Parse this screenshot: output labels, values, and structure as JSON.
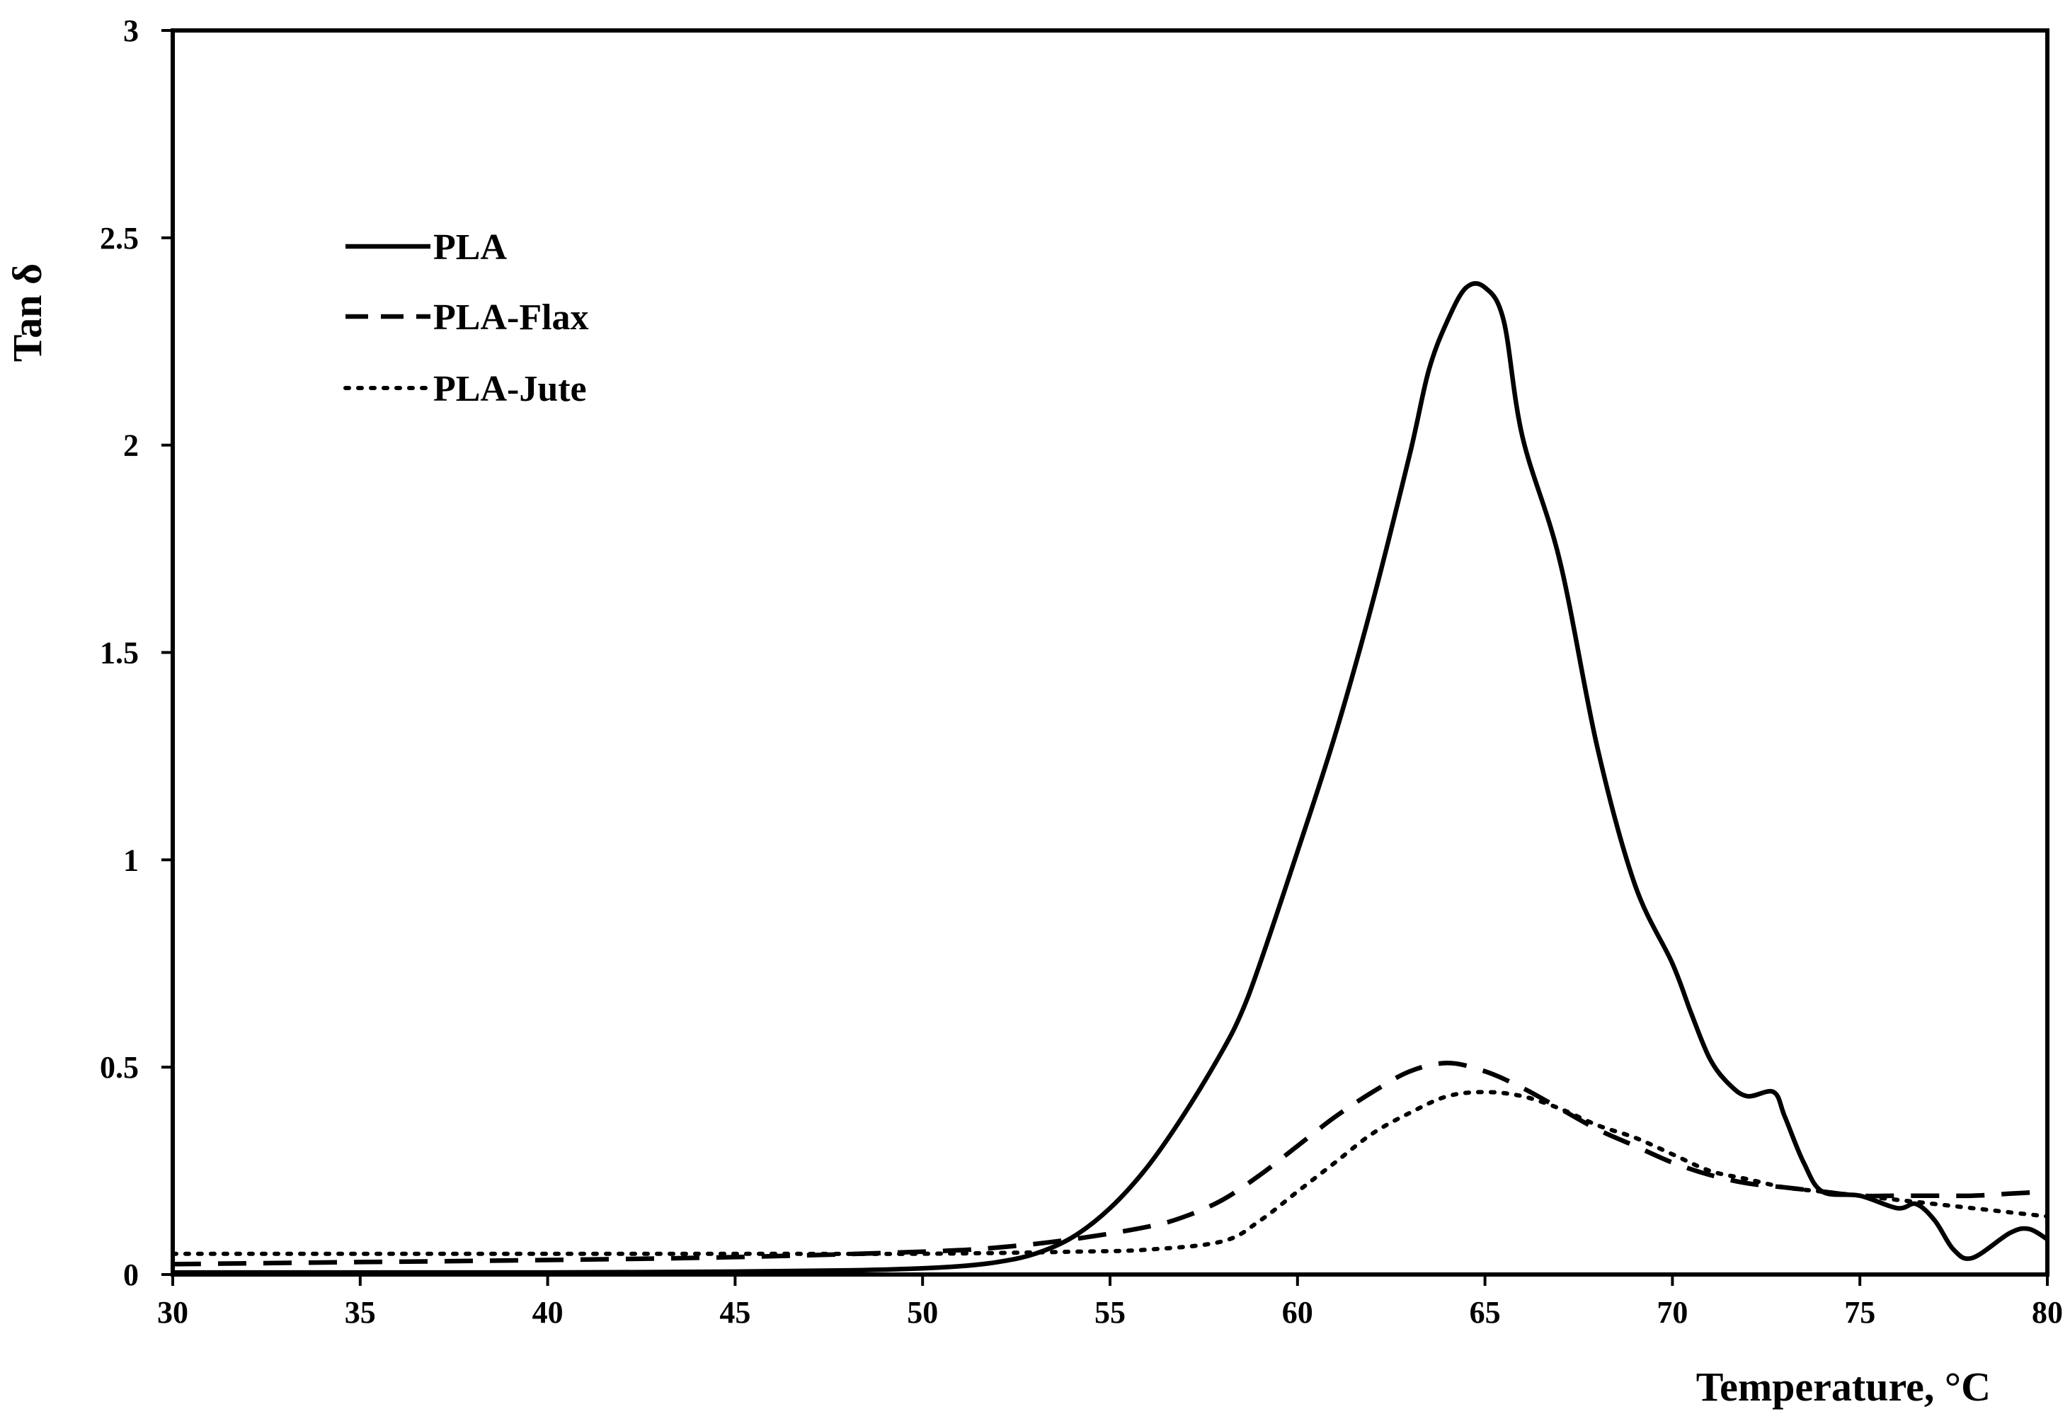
{
  "chart_data": {
    "type": "line",
    "title": "",
    "xlabel": "Temperature, °C",
    "ylabel": "Tan δ",
    "xlim": [
      30,
      80
    ],
    "ylim": [
      0,
      3
    ],
    "xticks": [
      "30",
      "35",
      "40",
      "45",
      "50",
      "55",
      "60",
      "65",
      "70",
      "75",
      "80"
    ],
    "yticks": [
      "0",
      "0.5",
      "1",
      "1.5",
      "2",
      "2.5",
      "3"
    ],
    "grid": false,
    "legend_position": "top-left",
    "series": [
      {
        "name": "PLA",
        "style": "solid",
        "points": [
          [
            30,
            0.005
          ],
          [
            35,
            0.005
          ],
          [
            40,
            0.005
          ],
          [
            45,
            0.007
          ],
          [
            48,
            0.01
          ],
          [
            50,
            0.015
          ],
          [
            51,
            0.02
          ],
          [
            52,
            0.03
          ],
          [
            53,
            0.05
          ],
          [
            54,
            0.09
          ],
          [
            55,
            0.16
          ],
          [
            56,
            0.26
          ],
          [
            57,
            0.39
          ],
          [
            58,
            0.54
          ],
          [
            58.5,
            0.63
          ],
          [
            59,
            0.75
          ],
          [
            60,
            1.02
          ],
          [
            61,
            1.3
          ],
          [
            62,
            1.62
          ],
          [
            63,
            1.98
          ],
          [
            63.5,
            2.18
          ],
          [
            64,
            2.3
          ],
          [
            64.5,
            2.38
          ],
          [
            65,
            2.38
          ],
          [
            65.5,
            2.3
          ],
          [
            66,
            2.02
          ],
          [
            67,
            1.72
          ],
          [
            68,
            1.27
          ],
          [
            69,
            0.94
          ],
          [
            70,
            0.75
          ],
          [
            70.5,
            0.63
          ],
          [
            71,
            0.52
          ],
          [
            71.5,
            0.46
          ],
          [
            72,
            0.43
          ],
          [
            72.7,
            0.44
          ],
          [
            73,
            0.38
          ],
          [
            73.5,
            0.27
          ],
          [
            74,
            0.2
          ],
          [
            75,
            0.19
          ],
          [
            76,
            0.16
          ],
          [
            76.5,
            0.17
          ],
          [
            77,
            0.13
          ],
          [
            77.5,
            0.06
          ],
          [
            78,
            0.04
          ],
          [
            79,
            0.1
          ],
          [
            79.5,
            0.11
          ],
          [
            80,
            0.085
          ]
        ]
      },
      {
        "name": "PLA-Flax",
        "style": "dashed",
        "points": [
          [
            30,
            0.025
          ],
          [
            35,
            0.03
          ],
          [
            40,
            0.035
          ],
          [
            45,
            0.042
          ],
          [
            50,
            0.055
          ],
          [
            52,
            0.065
          ],
          [
            54,
            0.085
          ],
          [
            56,
            0.115
          ],
          [
            57,
            0.14
          ],
          [
            58,
            0.18
          ],
          [
            59,
            0.24
          ],
          [
            60,
            0.31
          ],
          [
            61,
            0.38
          ],
          [
            62,
            0.44
          ],
          [
            63,
            0.49
          ],
          [
            64,
            0.51
          ],
          [
            65,
            0.49
          ],
          [
            66,
            0.45
          ],
          [
            67,
            0.4
          ],
          [
            68,
            0.35
          ],
          [
            69,
            0.31
          ],
          [
            70,
            0.27
          ],
          [
            71,
            0.24
          ],
          [
            72,
            0.22
          ],
          [
            73,
            0.21
          ],
          [
            74,
            0.2
          ],
          [
            75,
            0.19
          ],
          [
            76,
            0.19
          ],
          [
            77,
            0.19
          ],
          [
            78,
            0.19
          ],
          [
            79,
            0.195
          ],
          [
            80,
            0.2
          ]
        ]
      },
      {
        "name": "PLA-Jute",
        "style": "dotted",
        "points": [
          [
            30,
            0.05
          ],
          [
            35,
            0.05
          ],
          [
            40,
            0.05
          ],
          [
            45,
            0.05
          ],
          [
            50,
            0.05
          ],
          [
            54,
            0.055
          ],
          [
            56,
            0.06
          ],
          [
            58,
            0.08
          ],
          [
            59,
            0.13
          ],
          [
            60,
            0.2
          ],
          [
            61,
            0.27
          ],
          [
            62,
            0.34
          ],
          [
            63,
            0.39
          ],
          [
            64,
            0.43
          ],
          [
            65,
            0.44
          ],
          [
            66,
            0.43
          ],
          [
            67,
            0.4
          ],
          [
            68,
            0.36
          ],
          [
            69,
            0.33
          ],
          [
            70,
            0.29
          ],
          [
            71,
            0.25
          ],
          [
            72,
            0.23
          ],
          [
            73,
            0.21
          ],
          [
            74,
            0.2
          ],
          [
            75,
            0.19
          ],
          [
            76,
            0.18
          ],
          [
            77,
            0.17
          ],
          [
            78,
            0.16
          ],
          [
            79,
            0.15
          ],
          [
            80,
            0.14
          ]
        ]
      }
    ]
  }
}
